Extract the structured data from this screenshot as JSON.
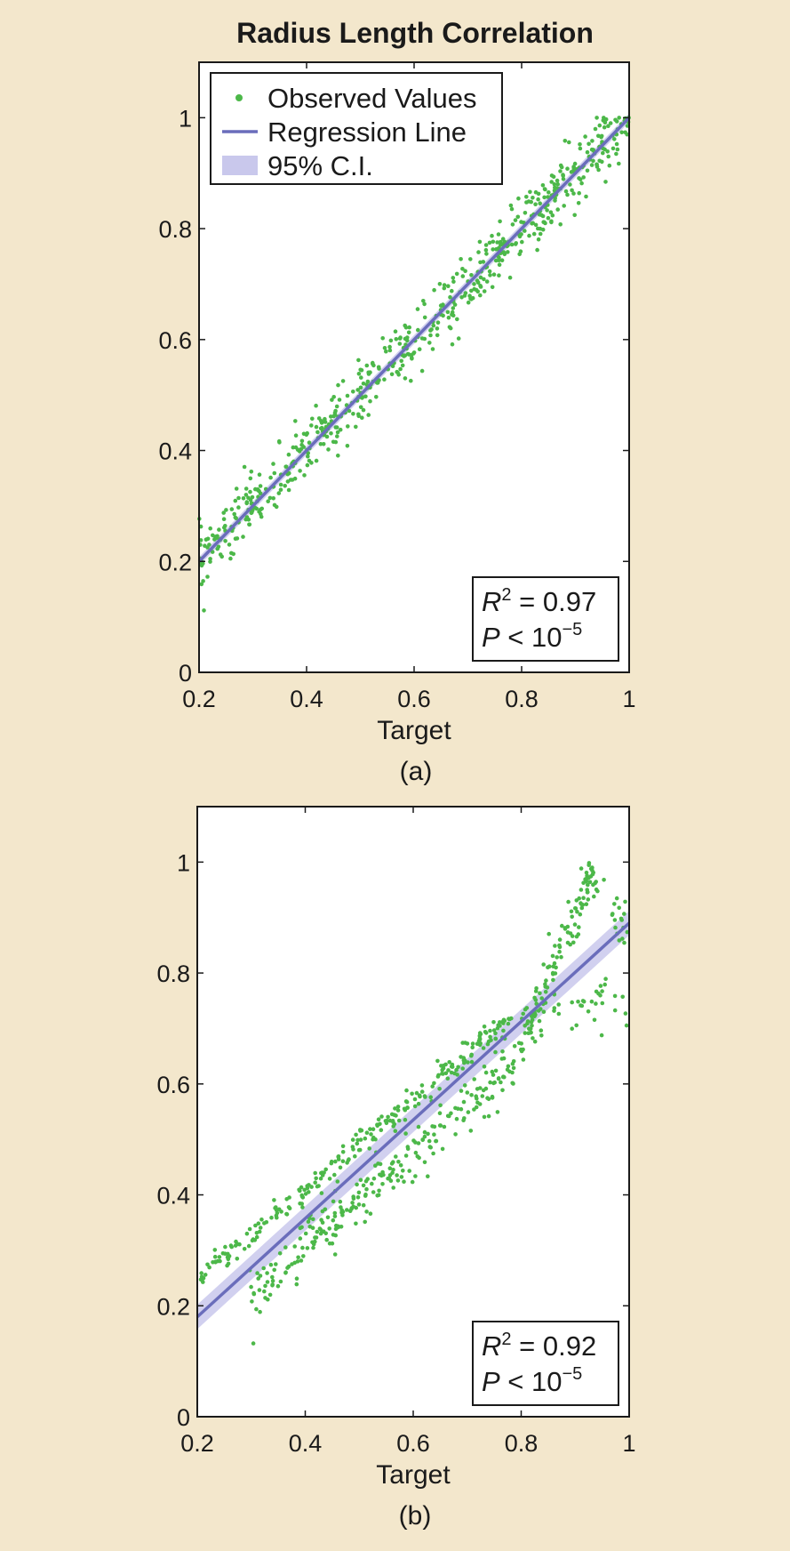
{
  "figure_title": "Radius Length Correlation",
  "colors": {
    "background": "#f3e7cc",
    "points": "#4cb849",
    "regression": "#6a6dbb",
    "ci": "#c9c8ec"
  },
  "legend": {
    "placement": "top-left",
    "items": [
      {
        "label": "Observed Values",
        "icon": "dot-marker-icon"
      },
      {
        "label": "Regression Line",
        "icon": "line-swatch-icon"
      },
      {
        "label": "95% C.I.",
        "icon": "band-swatch-icon"
      }
    ]
  },
  "chart_data": [
    {
      "type": "scatter",
      "caption": "(a)",
      "xlabel": "Target",
      "ylabel": "",
      "xlim": [
        0.2,
        1.0
      ],
      "ylim": [
        0.0,
        1.1
      ],
      "xticks": [
        0.2,
        0.4,
        0.6,
        0.8,
        1.0
      ],
      "xtick_labels": [
        "0.2",
        "0.4",
        "0.6",
        "0.8",
        "1"
      ],
      "yticks": [
        0.0,
        0.2,
        0.4,
        0.6,
        0.8,
        1.0
      ],
      "ytick_labels": [
        "0",
        "0.2",
        "0.4",
        "0.6",
        "0.8",
        "1"
      ],
      "grid": false,
      "has_legend": true,
      "regression": {
        "x": [
          0.2,
          1.0
        ],
        "y": [
          0.2,
          1.0
        ]
      },
      "ci_halfwidth": 0.008,
      "stats": {
        "r_symbol": "R",
        "r_exp": "2",
        "r_rhs": " = 0.97",
        "p_symbol": "P",
        "p_rhs": " < 10",
        "p_exp": "−5",
        "placement": "bottom-right"
      },
      "series": [
        {
          "name": "Observed Values",
          "kind": "points",
          "n": 620,
          "trend": "y≈x",
          "spread": 0.028
        }
      ]
    },
    {
      "type": "scatter",
      "caption": "(b)",
      "xlabel": "Target",
      "ylabel": "",
      "xlim": [
        0.2,
        1.0
      ],
      "ylim": [
        0.0,
        1.1
      ],
      "xticks": [
        0.2,
        0.4,
        0.6,
        0.8,
        1.0
      ],
      "xtick_labels": [
        "0.2",
        "0.4",
        "0.6",
        "0.8",
        "1"
      ],
      "yticks": [
        0.0,
        0.2,
        0.4,
        0.6,
        0.8,
        1.0
      ],
      "ytick_labels": [
        "0",
        "0.2",
        "0.4",
        "0.6",
        "0.8",
        "1"
      ],
      "grid": false,
      "has_legend": false,
      "regression": {
        "x": [
          0.2,
          1.0
        ],
        "y": [
          0.18,
          0.89
        ]
      },
      "ci_halfwidth": 0.022,
      "stats": {
        "r_symbol": "R",
        "r_exp": "2",
        "r_rhs": " = 0.92",
        "p_symbol": "P",
        "p_rhs": "  <  10",
        "p_exp": "−5",
        "placement": "bottom-right"
      },
      "series": [
        {
          "name": "Observed Values",
          "kind": "branches",
          "branches": [
            {
              "x0": 0.2,
              "x1": 0.78,
              "y0": 0.245,
              "y1": 0.72,
              "spread": 0.012,
              "n": 260
            },
            {
              "x0": 0.3,
              "x1": 0.78,
              "y0": 0.22,
              "y1": 0.63,
              "spread": 0.025,
              "n": 250
            },
            {
              "x0": 0.78,
              "x1": 0.93,
              "y0": 0.62,
              "y1": 0.98,
              "spread": 0.02,
              "n": 110
            },
            {
              "x0": 0.8,
              "x1": 1.0,
              "y0": 0.72,
              "y1": 0.76,
              "spread": 0.025,
              "n": 50
            },
            {
              "x0": 0.93,
              "x1": 1.0,
              "y0": 0.97,
              "y1": 0.86,
              "spread": 0.02,
              "n": 30
            }
          ]
        }
      ]
    }
  ]
}
